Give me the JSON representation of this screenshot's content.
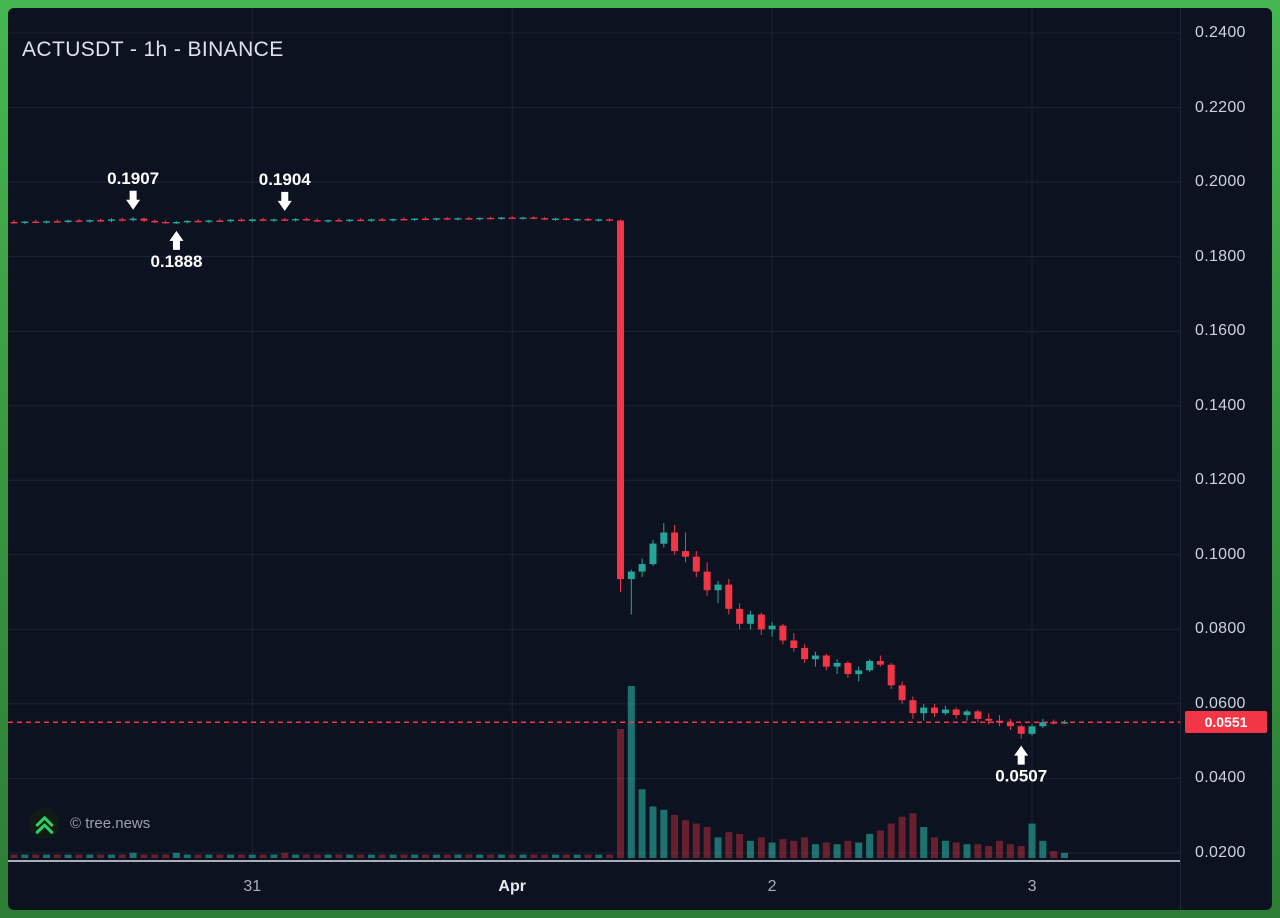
{
  "header": {
    "title": "ACTUSDT - 1h - BINANCE"
  },
  "footer": {
    "watermark": "© tree.news"
  },
  "colors": {
    "up": "#26a69a",
    "down": "#f23645",
    "volume_up": "rgba(38,166,154,0.65)",
    "volume_down": "rgba(242,54,69,0.40)",
    "last_price": "#f23645",
    "accent_green": "#2fd05f"
  },
  "chart_data": {
    "type": "candlestick",
    "symbol": "ACTUSDT",
    "interval": "1h",
    "exchange": "BINANCE",
    "title": "ACTUSDT - 1h - BINANCE",
    "y_range": [
      0.02,
      0.24
    ],
    "grid": true,
    "price_axis_ticks": [
      "0.2400",
      "0.2200",
      "0.2000",
      "0.1800",
      "0.1600",
      "0.1400",
      "0.1200",
      "0.1000",
      "0.0800",
      "0.0600",
      "0.0400",
      "0.0200"
    ],
    "time_axis_ticks": [
      {
        "label": "31",
        "candle_index": 22
      },
      {
        "label": "Apr",
        "candle_index": 46,
        "emphasis": true
      },
      {
        "label": "2",
        "candle_index": 70
      },
      {
        "label": "3",
        "candle_index": 94
      }
    ],
    "last_price": 0.0551,
    "last_price_label": "0.0551",
    "annotations": [
      {
        "label": "0.1907",
        "price": 0.1907,
        "candle_index": 11,
        "direction": "down"
      },
      {
        "label": "0.1888",
        "price": 0.1888,
        "candle_index": 15,
        "direction": "up"
      },
      {
        "label": "0.1904",
        "price": 0.1904,
        "candle_index": 25,
        "direction": "down"
      },
      {
        "label": "0.0507",
        "price": 0.0507,
        "candle_index": 93,
        "direction": "up"
      }
    ],
    "candle_format": [
      "open",
      "high",
      "low",
      "close",
      "volume"
    ],
    "candles": [
      [
        0.1893,
        0.1898,
        0.1888,
        0.1891,
        2
      ],
      [
        0.1891,
        0.1896,
        0.1887,
        0.1894,
        2
      ],
      [
        0.1894,
        0.1899,
        0.189,
        0.1892,
        2
      ],
      [
        0.1892,
        0.1897,
        0.1889,
        0.1895,
        2
      ],
      [
        0.1895,
        0.19,
        0.1891,
        0.1893,
        2
      ],
      [
        0.1893,
        0.1899,
        0.189,
        0.1897,
        2
      ],
      [
        0.1897,
        0.1901,
        0.1892,
        0.1894,
        2
      ],
      [
        0.1894,
        0.19,
        0.1891,
        0.1898,
        2
      ],
      [
        0.1898,
        0.1902,
        0.1893,
        0.1896,
        2
      ],
      [
        0.1896,
        0.1903,
        0.1892,
        0.19,
        2
      ],
      [
        0.19,
        0.1905,
        0.1895,
        0.1898,
        2
      ],
      [
        0.1898,
        0.1907,
        0.1894,
        0.1902,
        3
      ],
      [
        0.1902,
        0.1905,
        0.1893,
        0.1896,
        2
      ],
      [
        0.1896,
        0.19,
        0.189,
        0.1893,
        2
      ],
      [
        0.1893,
        0.1897,
        0.1889,
        0.1891,
        2
      ],
      [
        0.1891,
        0.1895,
        0.1888,
        0.1893,
        3
      ],
      [
        0.1893,
        0.1898,
        0.1889,
        0.1896,
        2
      ],
      [
        0.1896,
        0.1901,
        0.1892,
        0.1894,
        2
      ],
      [
        0.1894,
        0.1899,
        0.189,
        0.1897,
        2
      ],
      [
        0.1897,
        0.1902,
        0.1893,
        0.1895,
        2
      ],
      [
        0.1895,
        0.1901,
        0.1891,
        0.1899,
        2
      ],
      [
        0.1899,
        0.1903,
        0.1894,
        0.1896,
        2
      ],
      [
        0.1896,
        0.1902,
        0.1892,
        0.19,
        2
      ],
      [
        0.19,
        0.1904,
        0.1895,
        0.1897,
        2
      ],
      [
        0.1897,
        0.1902,
        0.1893,
        0.19,
        2
      ],
      [
        0.19,
        0.1904,
        0.1896,
        0.1898,
        3
      ],
      [
        0.1898,
        0.1903,
        0.1894,
        0.1901,
        2
      ],
      [
        0.1901,
        0.1905,
        0.1896,
        0.1898,
        2
      ],
      [
        0.1898,
        0.1902,
        0.1893,
        0.1895,
        2
      ],
      [
        0.1895,
        0.19,
        0.1891,
        0.1898,
        2
      ],
      [
        0.1898,
        0.1903,
        0.1894,
        0.1896,
        2
      ],
      [
        0.1896,
        0.1901,
        0.1892,
        0.1899,
        2
      ],
      [
        0.1899,
        0.1903,
        0.1895,
        0.1897,
        2
      ],
      [
        0.1897,
        0.1902,
        0.1893,
        0.19,
        2
      ],
      [
        0.19,
        0.1904,
        0.1896,
        0.1898,
        2
      ],
      [
        0.1898,
        0.1902,
        0.1894,
        0.1901,
        2
      ],
      [
        0.1901,
        0.1905,
        0.1897,
        0.1899,
        2
      ],
      [
        0.1899,
        0.1903,
        0.1895,
        0.1902,
        2
      ],
      [
        0.1902,
        0.1906,
        0.1898,
        0.19,
        2
      ],
      [
        0.19,
        0.1904,
        0.1896,
        0.1903,
        2
      ],
      [
        0.1903,
        0.1906,
        0.1898,
        0.19,
        2
      ],
      [
        0.19,
        0.1905,
        0.1897,
        0.1903,
        2
      ],
      [
        0.1903,
        0.1907,
        0.1899,
        0.1901,
        2
      ],
      [
        0.1901,
        0.1905,
        0.1897,
        0.1904,
        2
      ],
      [
        0.1904,
        0.1907,
        0.19,
        0.1902,
        2
      ],
      [
        0.1902,
        0.1906,
        0.1898,
        0.1905,
        2
      ],
      [
        0.1905,
        0.1908,
        0.1901,
        0.1903,
        2
      ],
      [
        0.1903,
        0.1907,
        0.1899,
        0.1905,
        2
      ],
      [
        0.1905,
        0.1908,
        0.1901,
        0.1903,
        2
      ],
      [
        0.1903,
        0.1906,
        0.1898,
        0.19,
        2
      ],
      [
        0.19,
        0.1904,
        0.1896,
        0.1902,
        2
      ],
      [
        0.1902,
        0.1905,
        0.1897,
        0.1899,
        2
      ],
      [
        0.1899,
        0.1903,
        0.1895,
        0.1901,
        2
      ],
      [
        0.1901,
        0.1904,
        0.1896,
        0.1898,
        2
      ],
      [
        0.1898,
        0.1902,
        0.1894,
        0.19,
        2
      ],
      [
        0.19,
        0.1903,
        0.1895,
        0.1897,
        2
      ],
      [
        0.1897,
        0.19,
        0.09,
        0.0935,
        75
      ],
      [
        0.0935,
        0.096,
        0.084,
        0.0955,
        100
      ],
      [
        0.0955,
        0.099,
        0.094,
        0.0975,
        40
      ],
      [
        0.0975,
        0.104,
        0.097,
        0.103,
        30
      ],
      [
        0.103,
        0.1085,
        0.102,
        0.106,
        28
      ],
      [
        0.106,
        0.108,
        0.1,
        0.101,
        25
      ],
      [
        0.101,
        0.106,
        0.098,
        0.0995,
        22
      ],
      [
        0.0995,
        0.101,
        0.094,
        0.0955,
        20
      ],
      [
        0.0955,
        0.098,
        0.089,
        0.0905,
        18
      ],
      [
        0.0905,
        0.093,
        0.087,
        0.092,
        12
      ],
      [
        0.092,
        0.0935,
        0.084,
        0.0855,
        15
      ],
      [
        0.0855,
        0.087,
        0.08,
        0.0815,
        14
      ],
      [
        0.0815,
        0.085,
        0.08,
        0.084,
        10
      ],
      [
        0.084,
        0.0845,
        0.0785,
        0.08,
        12
      ],
      [
        0.08,
        0.082,
        0.078,
        0.081,
        9
      ],
      [
        0.081,
        0.0815,
        0.076,
        0.077,
        11
      ],
      [
        0.077,
        0.079,
        0.074,
        0.075,
        10
      ],
      [
        0.075,
        0.076,
        0.071,
        0.072,
        12
      ],
      [
        0.072,
        0.074,
        0.07,
        0.073,
        8
      ],
      [
        0.073,
        0.0735,
        0.069,
        0.07,
        9
      ],
      [
        0.07,
        0.072,
        0.068,
        0.071,
        8
      ],
      [
        0.071,
        0.0715,
        0.067,
        0.068,
        10
      ],
      [
        0.068,
        0.07,
        0.066,
        0.069,
        9
      ],
      [
        0.069,
        0.072,
        0.0685,
        0.0715,
        14
      ],
      [
        0.0715,
        0.073,
        0.07,
        0.0705,
        16
      ],
      [
        0.0705,
        0.071,
        0.064,
        0.065,
        20
      ],
      [
        0.065,
        0.066,
        0.06,
        0.061,
        24
      ],
      [
        0.061,
        0.062,
        0.056,
        0.0575,
        26
      ],
      [
        0.0575,
        0.06,
        0.0555,
        0.059,
        18
      ],
      [
        0.059,
        0.06,
        0.0565,
        0.0575,
        12
      ],
      [
        0.0575,
        0.0595,
        0.057,
        0.0585,
        10
      ],
      [
        0.0585,
        0.059,
        0.056,
        0.057,
        9
      ],
      [
        0.057,
        0.0585,
        0.0555,
        0.058,
        8
      ],
      [
        0.058,
        0.0585,
        0.055,
        0.056,
        8
      ],
      [
        0.056,
        0.0575,
        0.0545,
        0.0555,
        7
      ],
      [
        0.0555,
        0.057,
        0.054,
        0.055,
        10
      ],
      [
        0.055,
        0.056,
        0.053,
        0.054,
        8
      ],
      [
        0.054,
        0.0545,
        0.0507,
        0.052,
        7
      ],
      [
        0.052,
        0.0545,
        0.0515,
        0.054,
        20
      ],
      [
        0.054,
        0.056,
        0.0535,
        0.0551,
        10
      ],
      [
        0.0551,
        0.0558,
        0.0545,
        0.0548,
        4
      ],
      [
        0.0548,
        0.0556,
        0.0546,
        0.0551,
        3
      ]
    ]
  }
}
